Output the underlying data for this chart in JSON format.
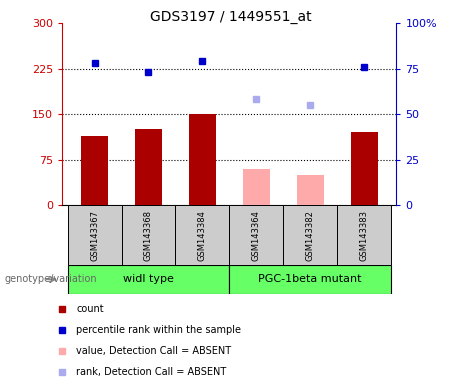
{
  "title": "GDS3197 / 1449551_at",
  "samples": [
    "GSM143367",
    "GSM143368",
    "GSM143384",
    "GSM143364",
    "GSM143382",
    "GSM143383"
  ],
  "count_values": [
    115,
    125,
    150,
    null,
    null,
    120
  ],
  "count_absent": [
    null,
    null,
    null,
    60,
    50,
    null
  ],
  "rank_values": [
    235,
    220,
    237,
    null,
    null,
    228
  ],
  "rank_absent": [
    null,
    null,
    null,
    175,
    165,
    null
  ],
  "ylim_left": [
    0,
    300
  ],
  "ylim_right": [
    0,
    100
  ],
  "yticks_left": [
    0,
    75,
    150,
    225,
    300
  ],
  "yticks_right": [
    0,
    25,
    50,
    75,
    100
  ],
  "ytick_labels_left": [
    "0",
    "75",
    "150",
    "225",
    "300"
  ],
  "ytick_labels_right": [
    "0",
    "25",
    "50",
    "75",
    "100%"
  ],
  "hlines": [
    75,
    150,
    225
  ],
  "bar_color_present": "#aa0000",
  "bar_color_absent": "#ffaaaa",
  "dot_color_present": "#0000cc",
  "dot_color_absent": "#aaaaee",
  "axis_left_color": "#cc0000",
  "axis_right_color": "#0000cc",
  "group_defs": [
    {
      "label": "widl type",
      "start": 0,
      "end": 2
    },
    {
      "label": "PGC-1beta mutant",
      "start": 3,
      "end": 5
    }
  ],
  "group_color": "#66ff66",
  "sample_box_color": "#cccccc",
  "legend_items": [
    "count",
    "percentile rank within the sample",
    "value, Detection Call = ABSENT",
    "rank, Detection Call = ABSENT"
  ],
  "legend_colors": [
    "#aa0000",
    "#0000cc",
    "#ffaaaa",
    "#aaaaee"
  ],
  "bar_width": 0.5,
  "dot_size": 5,
  "title_fontsize": 10,
  "tick_fontsize": 8,
  "sample_fontsize": 6,
  "group_fontsize": 8,
  "legend_fontsize": 7,
  "genotype_label": "genotype/variation"
}
